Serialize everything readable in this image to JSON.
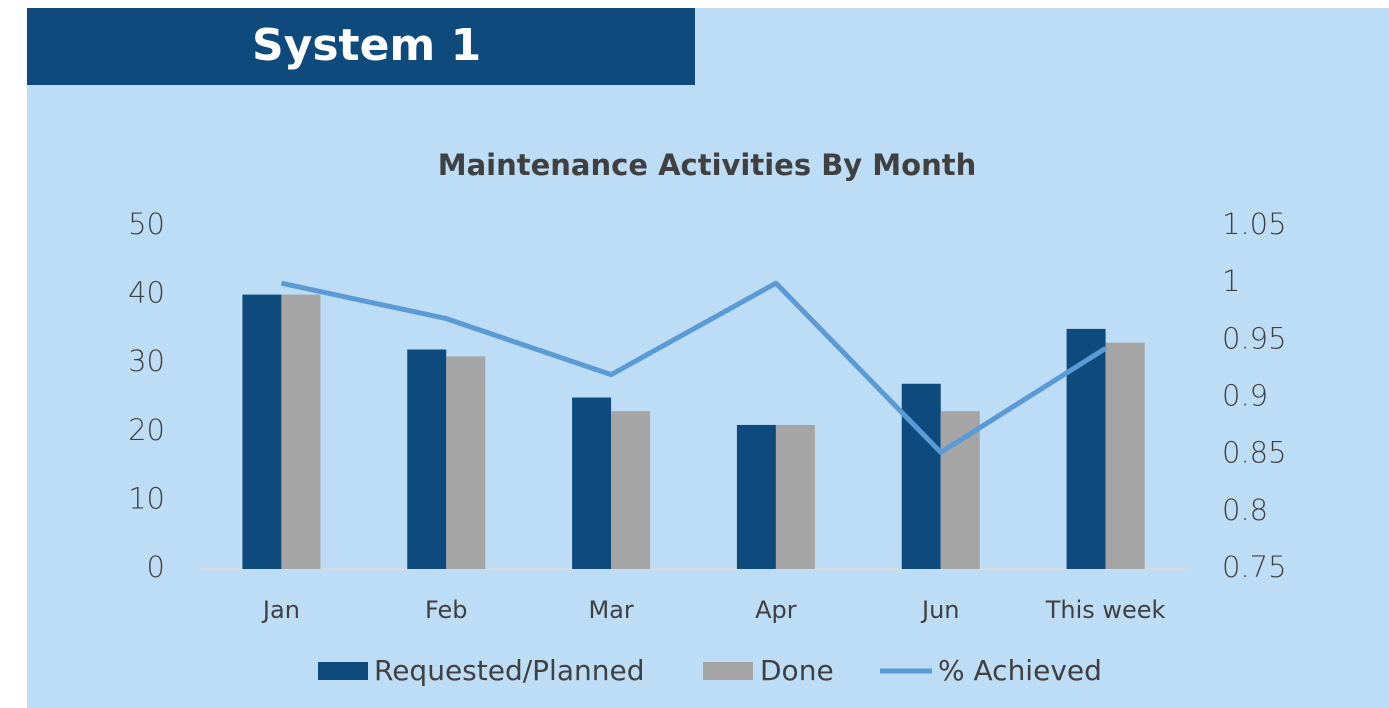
{
  "header": "System 1",
  "chart_data": {
    "type": "bar",
    "title": "Maintenance Activities By Month",
    "categories": [
      "Jan",
      "Feb",
      "Mar",
      "Apr",
      "Jun",
      "This week"
    ],
    "series": [
      {
        "name": "Requested/Planned",
        "color": "#0f4a7c",
        "values": [
          40,
          32,
          25,
          21,
          27,
          35
        ]
      },
      {
        "name": "Done",
        "color": "#a5a5a5",
        "values": [
          40,
          31,
          23,
          21,
          23,
          33
        ]
      },
      {
        "name": "% Achieved",
        "color": "#5b9bd5",
        "type": "line",
        "axis": "y2",
        "values": [
          1.0,
          0.969,
          0.92,
          1.0,
          0.852,
          0.943
        ]
      }
    ],
    "ylim": [
      0,
      50
    ],
    "yticks": [
      0,
      10,
      20,
      30,
      40,
      50
    ],
    "y2lim": [
      0.75,
      1.05
    ],
    "y2ticks": [
      0.75,
      0.8,
      0.85,
      0.9,
      0.95,
      1,
      1.05
    ],
    "grid": false,
    "legend": "bottom"
  }
}
